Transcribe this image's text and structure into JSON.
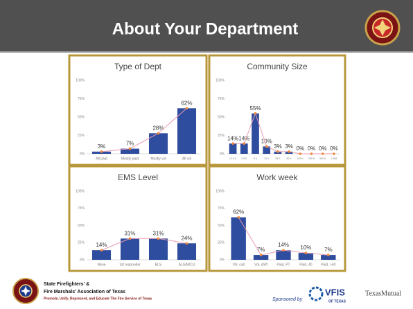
{
  "header": {
    "title": "About Your Department"
  },
  "footer": {
    "org_line1": "State Firefighters' &",
    "org_line2": "Fire Marshals' Association of Texas",
    "tagline": "Promote, Unify, Represent, and Educate The Fire Service of Texas",
    "sponsor": "Sponsored by",
    "vfis": "VFIS",
    "vfis_sub": "OF TEXAS",
    "texas_mutual": "TexasMutual"
  },
  "chart_data": [
    {
      "type": "bar",
      "title": "Type of Dept",
      "categories": [
        "All paid",
        "Mostly paid",
        "Mostly vol",
        "All vol"
      ],
      "values": [
        3,
        7,
        28,
        62
      ],
      "value_labels": [
        "3%",
        "7%",
        "28%",
        "62%"
      ],
      "color": "#2f4d9e",
      "line_color": "#e89bb0",
      "marker_color": "#f08a3c",
      "ylim": [
        0,
        100
      ],
      "yticks": [
        {
          "value": 0,
          "label": "0%"
        },
        {
          "value": 25,
          "label": "25%"
        },
        {
          "value": 50,
          "label": "50%"
        },
        {
          "value": 75,
          "label": "75%"
        },
        {
          "value": 100,
          "label": "100%"
        }
      ]
    },
    {
      "type": "bar",
      "title": "Community Size",
      "categories": [
        "<2.5 K",
        "2.5 K",
        "5 K",
        "10 K",
        "25 K",
        "50 K",
        "100 K",
        "250 K",
        "500 K",
        "1 MM"
      ],
      "values": [
        14,
        14,
        55,
        10,
        3,
        3,
        0,
        0,
        0,
        0
      ],
      "value_labels": [
        "14%",
        "14%",
        "55%",
        "10%",
        "3%",
        "3%",
        "0%",
        "0%",
        "0%",
        "0%"
      ],
      "color": "#2f4d9e",
      "line_color": "#e89bb0",
      "marker_color": "#f08a3c",
      "ylim": [
        0,
        100
      ],
      "yticks": [
        {
          "value": 0,
          "label": "0%"
        },
        {
          "value": 25,
          "label": "25%"
        },
        {
          "value": 50,
          "label": "50%"
        },
        {
          "value": 75,
          "label": "75%"
        },
        {
          "value": 100,
          "label": "100%"
        }
      ]
    },
    {
      "type": "bar",
      "title": "EMS Level",
      "categories": [
        "None",
        "1st responder",
        "BLS",
        "ALS/MICU"
      ],
      "values": [
        14,
        31,
        31,
        24
      ],
      "value_labels": [
        "14%",
        "31%",
        "31%",
        "24%"
      ],
      "color": "#2f4d9e",
      "line_color": "#e89bb0",
      "marker_color": "#f08a3c",
      "ylim": [
        0,
        100
      ],
      "yticks": [
        {
          "value": 0,
          "label": "0%"
        },
        {
          "value": 25,
          "label": "25%"
        },
        {
          "value": 50,
          "label": "50%"
        },
        {
          "value": 75,
          "label": "75%"
        },
        {
          "value": 100,
          "label": "100%"
        }
      ]
    },
    {
      "type": "bar",
      "title": "Work week",
      "categories": [
        "Vol, call",
        "Vol, shift",
        "Paid, PT",
        "Paid, 40",
        "Paid, >40"
      ],
      "values": [
        62,
        7,
        14,
        10,
        7
      ],
      "value_labels": [
        "62%",
        "7%",
        "14%",
        "10%",
        "7%"
      ],
      "color": "#2f4d9e",
      "line_color": "#e89bb0",
      "marker_color": "#f08a3c",
      "ylim": [
        0,
        100
      ],
      "yticks": [
        {
          "value": 0,
          "label": "0%"
        },
        {
          "value": 25,
          "label": "25%"
        },
        {
          "value": 50,
          "label": "50%"
        },
        {
          "value": 75,
          "label": "75%"
        },
        {
          "value": 100,
          "label": "100%"
        }
      ]
    }
  ]
}
